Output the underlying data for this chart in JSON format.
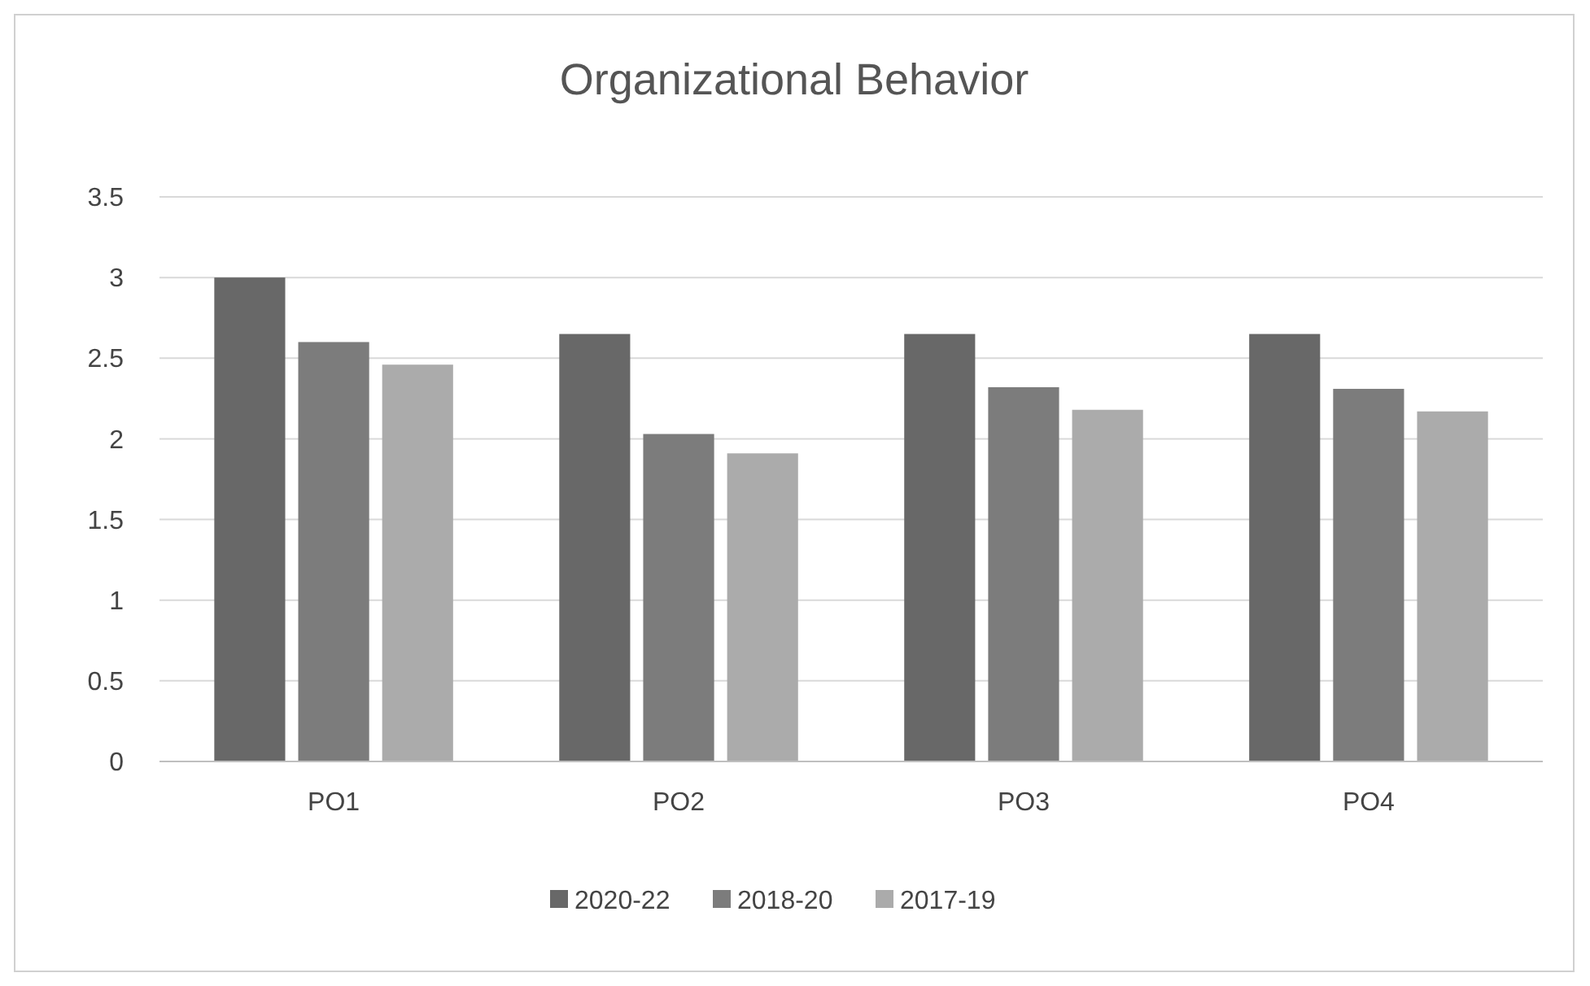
{
  "chart_data": {
    "type": "bar",
    "title": "Organizational Behavior",
    "categories": [
      "PO1",
      "PO2",
      "PO3",
      "PO4"
    ],
    "series": [
      {
        "name": "2020-22",
        "color": "#686868",
        "values": [
          3.0,
          2.65,
          2.65,
          2.65
        ]
      },
      {
        "name": "2018-20",
        "color": "#7c7c7c",
        "values": [
          2.6,
          2.03,
          2.32,
          2.31
        ]
      },
      {
        "name": "2017-19",
        "color": "#ababab",
        "values": [
          2.46,
          1.91,
          2.18,
          2.17
        ]
      }
    ],
    "ylim": [
      0,
      3.5
    ],
    "yticks": [
      0,
      0.5,
      1,
      1.5,
      2,
      2.5,
      3,
      3.5
    ],
    "grid": "y",
    "legend": "bottom"
  }
}
